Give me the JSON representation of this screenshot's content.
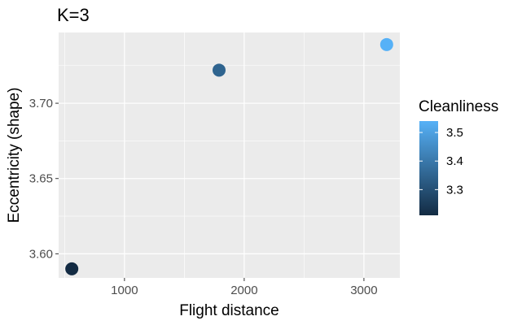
{
  "chart_data": {
    "type": "scatter",
    "title": "K=3",
    "xlabel": "Flight distance",
    "ylabel": "Eccentricity (shape)",
    "xlim": [
      450,
      3300
    ],
    "ylim": [
      3.584,
      3.747
    ],
    "xticks": [
      1000,
      2000,
      3000
    ],
    "xtick_labels": [
      "1000",
      "2000",
      "3000"
    ],
    "yticks": [
      3.6,
      3.65,
      3.7
    ],
    "ytick_labels": [
      "3.60",
      "3.65",
      "3.70"
    ],
    "grid": true,
    "points": [
      {
        "x": 560,
        "y": 3.59,
        "cleanliness": 3.21
      },
      {
        "x": 1790,
        "y": 3.722,
        "cleanliness": 3.35
      },
      {
        "x": 3190,
        "y": 3.739,
        "cleanliness": 3.54
      }
    ],
    "legend": {
      "title": "Cleanliness",
      "placement": "right",
      "ticks": [
        3.3,
        3.4,
        3.5
      ],
      "tick_labels": [
        "3.3",
        "3.4",
        "3.5"
      ],
      "range": [
        3.21,
        3.54
      ],
      "low_color": "#132B43",
      "high_color": "#56B1F7"
    },
    "colors": {
      "panel_background": "#EBEBEB",
      "grid": "#FFFFFF",
      "page_background": "#FFFFFF"
    }
  }
}
